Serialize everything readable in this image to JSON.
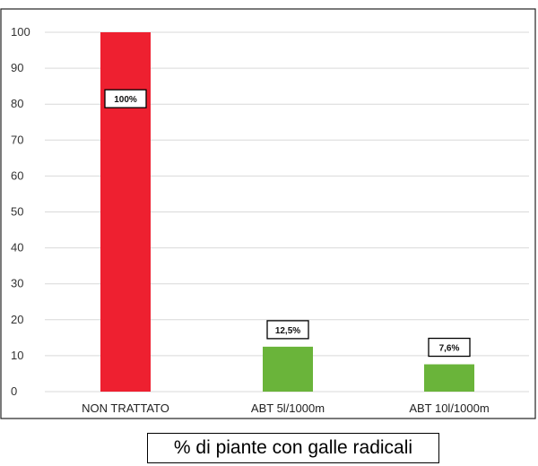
{
  "chart_data": {
    "type": "bar",
    "categories": [
      "NON TRATTATO",
      "ABT 5l/1000m",
      "ABT 10l/1000m"
    ],
    "values": [
      100,
      12.5,
      7.6
    ],
    "data_labels": [
      "100%",
      "12,5%",
      "7,6%"
    ],
    "bar_colors": [
      "#ee2030",
      "#6ab43a",
      "#6ab43a"
    ],
    "ylim": [
      0,
      100
    ],
    "yticks": [
      0,
      10,
      20,
      30,
      40,
      50,
      60,
      70,
      80,
      90,
      100
    ],
    "grid": true,
    "legend": "none"
  },
  "caption": "% di piante con galle radicali"
}
